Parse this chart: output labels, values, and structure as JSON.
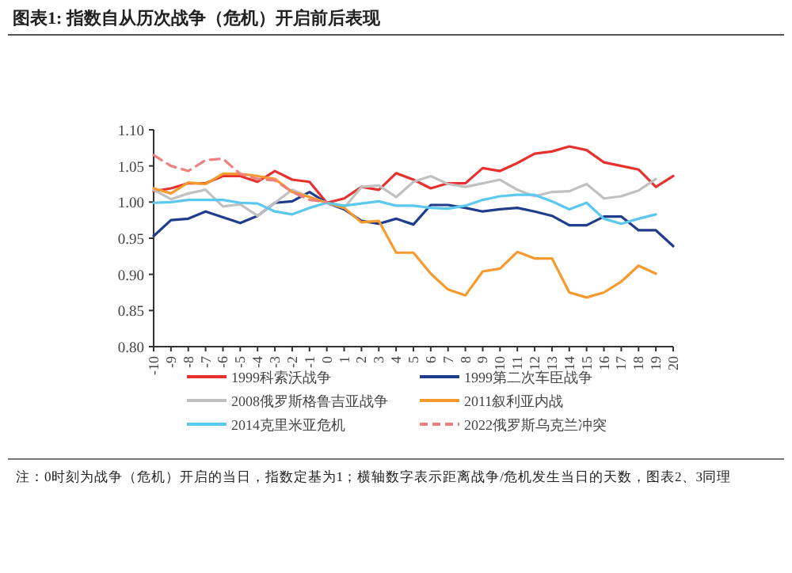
{
  "chart_data": {
    "type": "line",
    "title": "图表1:  指数自从历次战争（危机）开启前后表现",
    "annotations": [
      "注：0时刻为战争（危机）开启的当日，指数定基为1；横轴数字表示距离战争/危机发生当日的天数，图表2、3同理"
    ],
    "x": [
      -10,
      -9,
      -8,
      -7,
      -6,
      -5,
      -4,
      -3,
      -2,
      -1,
      0,
      1,
      2,
      3,
      4,
      5,
      6,
      7,
      8,
      9,
      10,
      11,
      12,
      13,
      14,
      15,
      16,
      17,
      18,
      19,
      20
    ],
    "xlim": [
      -10,
      20
    ],
    "xticks": [
      -10,
      -9,
      -8,
      -7,
      -6,
      -5,
      -4,
      -3,
      -2,
      -1,
      0,
      1,
      2,
      3,
      4,
      5,
      6,
      7,
      8,
      9,
      10,
      11,
      12,
      13,
      14,
      15,
      16,
      17,
      18,
      19,
      20
    ],
    "ylim": [
      0.8,
      1.1
    ],
    "yticks": [
      {
        "value": 0.8,
        "label": "0.80"
      },
      {
        "value": 0.85,
        "label": "0.85"
      },
      {
        "value": 0.9,
        "label": "0.90"
      },
      {
        "value": 0.95,
        "label": "0.95"
      },
      {
        "value": 1.0,
        "label": "1.00"
      },
      {
        "value": 1.05,
        "label": "1.05"
      },
      {
        "value": 1.1,
        "label": "1.10"
      }
    ],
    "grid": false,
    "legend": "bottom",
    "marker": "none",
    "series": [
      {
        "name": "1999科索沃战争",
        "color": "#e8312e",
        "values": [
          1.015,
          1.019,
          1.026,
          1.026,
          1.036,
          1.036,
          1.028,
          1.043,
          1.031,
          1.028,
          0.999,
          1.005,
          1.021,
          1.017,
          1.04,
          1.031,
          1.019,
          1.026,
          1.026,
          1.047,
          1.043,
          1.054,
          1.067,
          1.07,
          1.077,
          1.072,
          1.055,
          1.05,
          1.045,
          1.021,
          1.036
        ]
      },
      {
        "name": "1999第二次车臣战争",
        "color": "#1f3d8c",
        "values": [
          0.953,
          0.975,
          0.977,
          0.987,
          0.979,
          0.971,
          0.981,
          0.999,
          1.001,
          1.014,
          0.999,
          0.99,
          0.974,
          0.97,
          0.977,
          0.969,
          0.996,
          0.996,
          0.992,
          0.987,
          0.99,
          0.992,
          0.987,
          0.981,
          0.968,
          0.968,
          0.98,
          0.98,
          0.961,
          0.961,
          0.939
        ]
      },
      {
        "name": "2008俄罗斯格鲁吉亚战争",
        "color": "#c0c0c0",
        "values": [
          1.017,
          1.004,
          1.012,
          1.017,
          0.994,
          0.997,
          0.981,
          0.999,
          1.017,
          1.007,
          0.999,
          0.992,
          1.021,
          1.023,
          1.007,
          1.028,
          1.036,
          1.025,
          1.021,
          1.026,
          1.031,
          1.017,
          1.008,
          1.014,
          1.015,
          1.025,
          1.005,
          1.008,
          1.016,
          1.032,
          null
        ]
      },
      {
        "name": "2011叙利亚内战",
        "color": "#f79a2e",
        "values": [
          1.019,
          1.012,
          1.027,
          1.025,
          1.039,
          1.039,
          1.036,
          1.032,
          1.014,
          1.007,
          0.999,
          0.992,
          0.972,
          0.974,
          0.93,
          0.93,
          0.901,
          0.879,
          0.871,
          0.904,
          0.908,
          0.931,
          0.922,
          0.922,
          0.875,
          0.868,
          0.875,
          0.89,
          0.912,
          0.901,
          null
        ]
      },
      {
        "name": "2014克里米亚危机",
        "color": "#5bc8f0",
        "values": [
          0.999,
          1.0,
          1.003,
          1.003,
          1.003,
          0.999,
          0.998,
          0.987,
          0.983,
          0.992,
          0.999,
          0.995,
          0.998,
          1.001,
          0.995,
          0.995,
          0.992,
          0.991,
          0.995,
          1.003,
          1.008,
          1.01,
          1.01,
          1.001,
          0.99,
          0.999,
          0.977,
          0.97,
          0.977,
          0.983,
          null
        ]
      },
      {
        "name": "2022俄罗斯乌克兰冲突",
        "color": "#f08080",
        "line_style": "dashed",
        "values": [
          1.065,
          1.05,
          1.043,
          1.058,
          1.06,
          1.039,
          1.032,
          1.03,
          1.014,
          1.003,
          1.0,
          null,
          null,
          null,
          null,
          null,
          null,
          null,
          null,
          null,
          null,
          null,
          null,
          null,
          null,
          null,
          null,
          null,
          null,
          null,
          null
        ]
      }
    ]
  }
}
